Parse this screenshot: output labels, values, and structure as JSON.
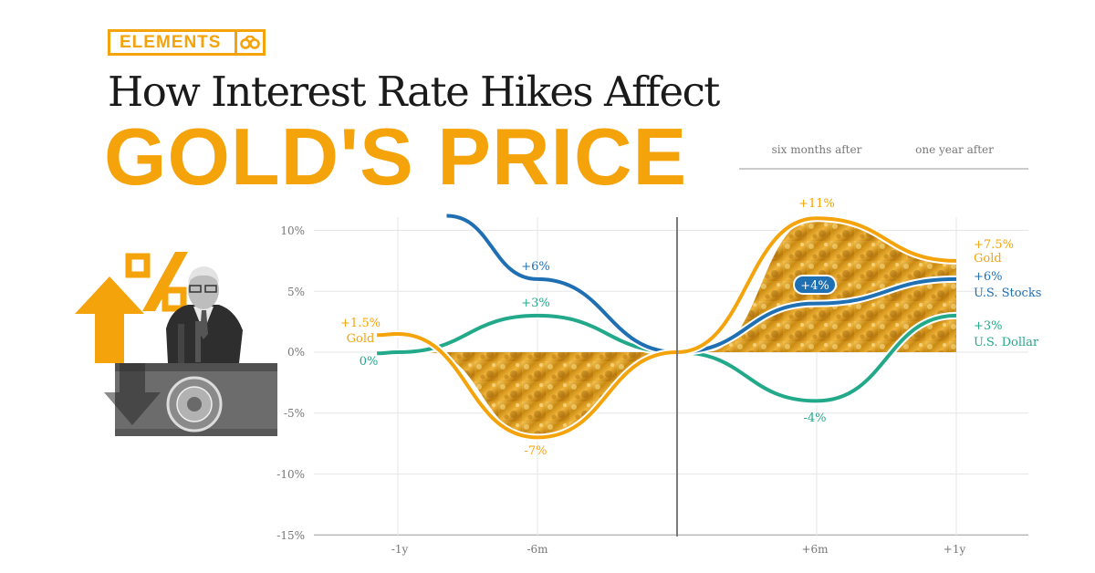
{
  "brand": {
    "name": "ELEMENTS",
    "logo_icon": "binoculars-icon",
    "color": "#f5a30a"
  },
  "title": "How Interest Rate Hikes Affect",
  "headline": "GOLD'S PRICE",
  "illustration": {
    "name": "speaker-at-podium-photo",
    "icons": [
      "percent-icon",
      "up-arrow-icon",
      "down-arrow-icon"
    ]
  },
  "chart_data": {
    "type": "line",
    "top_labels": [
      "six months after",
      "one year after"
    ],
    "x_ticks": [
      "-1y",
      "-6m",
      "+6m",
      "+1y"
    ],
    "y_ticks": [
      "10%",
      "5%",
      "0%",
      "-5%",
      "-10%",
      "-15%"
    ],
    "ylim": [
      -15,
      11
    ],
    "x": [
      -12,
      -6,
      0,
      6,
      12
    ],
    "series": [
      {
        "name": "Gold",
        "color": "#f5a30a",
        "values": [
          1.5,
          -7,
          0,
          11,
          7.5
        ]
      },
      {
        "name": "U.S. Stocks",
        "color": "#1f6fb3",
        "values": [
          null,
          6,
          0,
          4,
          6
        ]
      },
      {
        "name": "U.S. Dollar",
        "color": "#22a98a",
        "values": [
          0,
          3,
          0,
          -4,
          3
        ]
      }
    ],
    "annotations": {
      "gold_start_value": "+1.5%",
      "gold_start_name": "Gold",
      "gold_mid": "-7%",
      "gold_peak": "+11%",
      "gold_end_value": "+7.5%",
      "gold_end_name": "Gold",
      "stocks_mid": "+6%",
      "stocks_after": "+4%",
      "stocks_end_value": "+6%",
      "stocks_end_name": "U.S. Stocks",
      "dollar_start": "0%",
      "dollar_mid": "+3%",
      "dollar_after": "-4%",
      "dollar_end_value": "+3%",
      "dollar_end_name": "U.S. Dollar"
    }
  }
}
